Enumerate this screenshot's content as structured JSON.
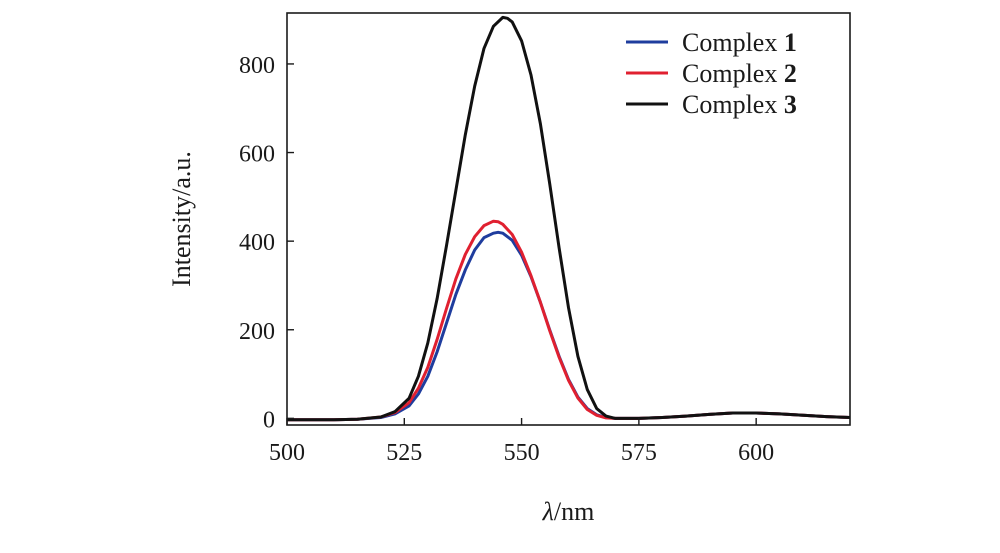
{
  "chart_data": {
    "type": "line",
    "title": "",
    "xlabel_italic": "λ",
    "xlabel_rest": "/nm",
    "ylabel": "Intensity/a.u.",
    "xlim": [
      500,
      620
    ],
    "ylim": [
      -15,
      915
    ],
    "x_ticks": [
      500,
      525,
      550,
      575,
      600
    ],
    "y_ticks": [
      0,
      200,
      400,
      600,
      800
    ],
    "legend_position": "top-right",
    "series": [
      {
        "name": "Complex 1",
        "legend_prefix": "Complex ",
        "legend_number": "1",
        "color": "#1f3d9e",
        "x": [
          500,
          510,
          515,
          520,
          523,
          526,
          528,
          530,
          532,
          534,
          536,
          538,
          540,
          542,
          544,
          545,
          546,
          548,
          550,
          552,
          554,
          556,
          558,
          560,
          562,
          564,
          566,
          568,
          570,
          575,
          580,
          585,
          590,
          595,
          600,
          605,
          610,
          615,
          620
        ],
        "values": [
          -3,
          -3,
          -2,
          2,
          10,
          28,
          55,
          95,
          150,
          215,
          280,
          335,
          380,
          408,
          418,
          420,
          418,
          402,
          368,
          320,
          262,
          200,
          140,
          88,
          48,
          22,
          8,
          2,
          0,
          0,
          2,
          5,
          9,
          12,
          12,
          10,
          7,
          4,
          2
        ]
      },
      {
        "name": "Complex 2",
        "legend_prefix": "Complex ",
        "legend_number": "2",
        "color": "#e02030",
        "x": [
          500,
          510,
          515,
          520,
          523,
          526,
          528,
          530,
          532,
          534,
          536,
          538,
          540,
          542,
          544,
          545,
          546,
          548,
          550,
          552,
          554,
          556,
          558,
          560,
          562,
          564,
          566,
          568,
          570,
          575,
          580,
          585,
          590,
          595,
          600,
          605,
          610,
          615,
          620
        ],
        "values": [
          -3,
          -3,
          -2,
          3,
          13,
          35,
          68,
          115,
          178,
          248,
          315,
          370,
          410,
          435,
          445,
          444,
          438,
          415,
          375,
          322,
          262,
          198,
          138,
          86,
          46,
          20,
          7,
          1,
          0,
          0,
          2,
          5,
          9,
          12,
          12,
          10,
          7,
          4,
          2
        ]
      },
      {
        "name": "Complex 3",
        "legend_prefix": "Complex ",
        "legend_number": "3",
        "color": "#111111",
        "x": [
          500,
          510,
          515,
          520,
          523,
          526,
          528,
          530,
          532,
          534,
          536,
          538,
          540,
          542,
          544,
          546,
          547,
          548,
          550,
          552,
          554,
          556,
          558,
          560,
          562,
          564,
          566,
          568,
          570,
          575,
          580,
          585,
          590,
          595,
          600,
          605,
          610,
          615,
          620
        ],
        "values": [
          -3,
          -3,
          -2,
          3,
          15,
          45,
          95,
          170,
          270,
          390,
          515,
          640,
          750,
          835,
          885,
          905,
          903,
          895,
          852,
          775,
          665,
          530,
          385,
          250,
          140,
          65,
          22,
          5,
          0,
          0,
          2,
          5,
          9,
          12,
          12,
          10,
          7,
          4,
          2
        ]
      }
    ]
  }
}
